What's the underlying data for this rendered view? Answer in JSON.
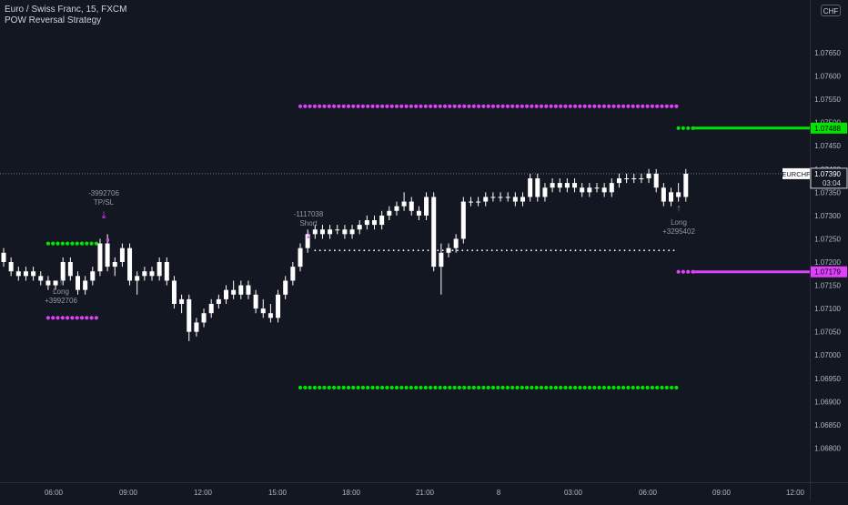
{
  "header": {
    "symbol_line": "Euro / Swiss Franc, 15, FXCM",
    "indicator_name": "POW Reversal Strategy",
    "currency_button": "CHF"
  },
  "last_price_label": {
    "symbol": "EURCHF",
    "price": "1.07390",
    "countdown": "03:04"
  },
  "price_tags": [
    {
      "label": "1.07488",
      "value": 1.07488,
      "color": "#00e500",
      "text_color": "#000000"
    },
    {
      "label": "1.07179",
      "value": 1.07179,
      "color": "#e040fb",
      "text_color": "#000000"
    }
  ],
  "trade_labels": [
    {
      "lines": [
        "Long",
        "+3992706"
      ],
      "arrow": "↑",
      "arrow_color": "#7b8ab8"
    },
    {
      "lines": [
        "-3992706",
        "TP/SL"
      ],
      "arrow": "⤓",
      "arrow_color": "#e040fb"
    },
    {
      "lines": [
        "-1117038",
        "Short"
      ],
      "arrow": "⤓",
      "arrow_color": "#e040fb"
    },
    {
      "lines": [
        "Long",
        "+3295402"
      ],
      "arrow": "↑",
      "arrow_color": "#7b8ab8"
    }
  ],
  "colors": {
    "background": "#131722",
    "candle_up": "#ffffff",
    "candle_down": "#ffffff",
    "green_dots": "#00e500",
    "magenta_dots": "#e040fb",
    "white_dots": "#ffffff",
    "axis_text": "#b2b5be"
  },
  "chart_data": {
    "type": "candlestick",
    "title": "Euro / Swiss Franc, 15, FXCM",
    "ylim": [
      1.0675,
      1.0774
    ],
    "y_ticks": [
      "1.07650",
      "1.07600",
      "1.07550",
      "1.07500",
      "1.07450",
      "1.07400",
      "1.07350",
      "1.07300",
      "1.07250",
      "1.07200",
      "1.07150",
      "1.07100",
      "1.07050",
      "1.07000",
      "1.06950",
      "1.06900",
      "1.06850",
      "1.06800"
    ],
    "x_ticks": [
      "06:00",
      "09:00",
      "12:00",
      "15:00",
      "18:00",
      "21:00",
      "8",
      "03:00",
      "06:00",
      "09:00",
      "12:00"
    ],
    "grid": false,
    "last_price": 1.0739,
    "candles": [
      {
        "o": 1.0722,
        "h": 1.0723,
        "l": 1.0719,
        "c": 1.072
      },
      {
        "o": 1.072,
        "h": 1.0721,
        "l": 1.0717,
        "c": 1.0718
      },
      {
        "o": 1.0718,
        "h": 1.0719,
        "l": 1.0716,
        "c": 1.0717
      },
      {
        "o": 1.0717,
        "h": 1.0719,
        "l": 1.0716,
        "c": 1.0718
      },
      {
        "o": 1.0718,
        "h": 1.0719,
        "l": 1.0716,
        "c": 1.0717
      },
      {
        "o": 1.0717,
        "h": 1.0718,
        "l": 1.0715,
        "c": 1.0716
      },
      {
        "o": 1.0716,
        "h": 1.0717,
        "l": 1.0714,
        "c": 1.0715
      },
      {
        "o": 1.0715,
        "h": 1.0716,
        "l": 1.0714,
        "c": 1.0716
      },
      {
        "o": 1.0716,
        "h": 1.0721,
        "l": 1.0715,
        "c": 1.072
      },
      {
        "o": 1.072,
        "h": 1.0721,
        "l": 1.0716,
        "c": 1.0717
      },
      {
        "o": 1.0717,
        "h": 1.0718,
        "l": 1.0713,
        "c": 1.0714
      },
      {
        "o": 1.0714,
        "h": 1.0717,
        "l": 1.0713,
        "c": 1.0716
      },
      {
        "o": 1.0716,
        "h": 1.0719,
        "l": 1.0715,
        "c": 1.0718
      },
      {
        "o": 1.0718,
        "h": 1.0725,
        "l": 1.0717,
        "c": 1.0724
      },
      {
        "o": 1.0724,
        "h": 1.0726,
        "l": 1.0718,
        "c": 1.0719
      },
      {
        "o": 1.0719,
        "h": 1.0721,
        "l": 1.0717,
        "c": 1.072
      },
      {
        "o": 1.072,
        "h": 1.0724,
        "l": 1.0719,
        "c": 1.0723
      },
      {
        "o": 1.0723,
        "h": 1.0724,
        "l": 1.0715,
        "c": 1.0716
      },
      {
        "o": 1.0716,
        "h": 1.0718,
        "l": 1.0713,
        "c": 1.0717
      },
      {
        "o": 1.0717,
        "h": 1.0719,
        "l": 1.0716,
        "c": 1.0718
      },
      {
        "o": 1.0718,
        "h": 1.0719,
        "l": 1.0716,
        "c": 1.0717
      },
      {
        "o": 1.0717,
        "h": 1.0721,
        "l": 1.0716,
        "c": 1.072
      },
      {
        "o": 1.072,
        "h": 1.0721,
        "l": 1.0715,
        "c": 1.0716
      },
      {
        "o": 1.0716,
        "h": 1.0717,
        "l": 1.071,
        "c": 1.0711
      },
      {
        "o": 1.0711,
        "h": 1.0713,
        "l": 1.0709,
        "c": 1.0712
      },
      {
        "o": 1.0712,
        "h": 1.0713,
        "l": 1.0703,
        "c": 1.0705
      },
      {
        "o": 1.0705,
        "h": 1.0708,
        "l": 1.0704,
        "c": 1.0707
      },
      {
        "o": 1.0707,
        "h": 1.071,
        "l": 1.0706,
        "c": 1.0709
      },
      {
        "o": 1.0709,
        "h": 1.0712,
        "l": 1.0708,
        "c": 1.0711
      },
      {
        "o": 1.0711,
        "h": 1.0713,
        "l": 1.071,
        "c": 1.0712
      },
      {
        "o": 1.0712,
        "h": 1.0715,
        "l": 1.0711,
        "c": 1.0714
      },
      {
        "o": 1.0714,
        "h": 1.0716,
        "l": 1.0712,
        "c": 1.0713
      },
      {
        "o": 1.0713,
        "h": 1.0716,
        "l": 1.0712,
        "c": 1.0715
      },
      {
        "o": 1.0715,
        "h": 1.0716,
        "l": 1.0712,
        "c": 1.0713
      },
      {
        "o": 1.0713,
        "h": 1.0714,
        "l": 1.0709,
        "c": 1.071
      },
      {
        "o": 1.071,
        "h": 1.0712,
        "l": 1.0708,
        "c": 1.0709
      },
      {
        "o": 1.0709,
        "h": 1.0711,
        "l": 1.0707,
        "c": 1.0708
      },
      {
        "o": 1.0708,
        "h": 1.0714,
        "l": 1.0707,
        "c": 1.0713
      },
      {
        "o": 1.0713,
        "h": 1.0717,
        "l": 1.0712,
        "c": 1.0716
      },
      {
        "o": 1.0716,
        "h": 1.072,
        "l": 1.0715,
        "c": 1.0719
      },
      {
        "o": 1.0719,
        "h": 1.0724,
        "l": 1.0718,
        "c": 1.0723
      },
      {
        "o": 1.0723,
        "h": 1.0727,
        "l": 1.0722,
        "c": 1.0726
      },
      {
        "o": 1.0726,
        "h": 1.0728,
        "l": 1.0725,
        "c": 1.0727
      },
      {
        "o": 1.0727,
        "h": 1.0728,
        "l": 1.0725,
        "c": 1.0726
      },
      {
        "o": 1.0726,
        "h": 1.0728,
        "l": 1.0725,
        "c": 1.0727
      },
      {
        "o": 1.0727,
        "h": 1.0728,
        "l": 1.0726,
        "c": 1.0727
      },
      {
        "o": 1.0727,
        "h": 1.0728,
        "l": 1.0725,
        "c": 1.0726
      },
      {
        "o": 1.0726,
        "h": 1.0728,
        "l": 1.0725,
        "c": 1.0727
      },
      {
        "o": 1.0727,
        "h": 1.0729,
        "l": 1.0726,
        "c": 1.0728
      },
      {
        "o": 1.0728,
        "h": 1.073,
        "l": 1.0727,
        "c": 1.0729
      },
      {
        "o": 1.0729,
        "h": 1.073,
        "l": 1.0727,
        "c": 1.0728
      },
      {
        "o": 1.0728,
        "h": 1.0731,
        "l": 1.0727,
        "c": 1.073
      },
      {
        "o": 1.073,
        "h": 1.0732,
        "l": 1.0729,
        "c": 1.0731
      },
      {
        "o": 1.0731,
        "h": 1.0733,
        "l": 1.073,
        "c": 1.0732
      },
      {
        "o": 1.0732,
        "h": 1.0735,
        "l": 1.0731,
        "c": 1.0733
      },
      {
        "o": 1.0733,
        "h": 1.0734,
        "l": 1.073,
        "c": 1.0731
      },
      {
        "o": 1.0731,
        "h": 1.0732,
        "l": 1.0729,
        "c": 1.073
      },
      {
        "o": 1.073,
        "h": 1.0735,
        "l": 1.0729,
        "c": 1.0734
      },
      {
        "o": 1.0734,
        "h": 1.0735,
        "l": 1.0718,
        "c": 1.0719
      },
      {
        "o": 1.0719,
        "h": 1.0724,
        "l": 1.0713,
        "c": 1.0722
      },
      {
        "o": 1.0722,
        "h": 1.0724,
        "l": 1.0721,
        "c": 1.0723
      },
      {
        "o": 1.0723,
        "h": 1.0726,
        "l": 1.0722,
        "c": 1.0725
      },
      {
        "o": 1.0725,
        "h": 1.0734,
        "l": 1.0724,
        "c": 1.0733
      },
      {
        "o": 1.0733,
        "h": 1.0734,
        "l": 1.0732,
        "c": 1.0733
      },
      {
        "o": 1.0733,
        "h": 1.0734,
        "l": 1.0732,
        "c": 1.0733
      },
      {
        "o": 1.0733,
        "h": 1.0735,
        "l": 1.0732,
        "c": 1.0734
      },
      {
        "o": 1.0734,
        "h": 1.0735,
        "l": 1.0733,
        "c": 1.0734
      },
      {
        "o": 1.0734,
        "h": 1.0735,
        "l": 1.0733,
        "c": 1.0734
      },
      {
        "o": 1.0734,
        "h": 1.0735,
        "l": 1.0733,
        "c": 1.0734
      },
      {
        "o": 1.0734,
        "h": 1.0735,
        "l": 1.0732,
        "c": 1.0733
      },
      {
        "o": 1.0733,
        "h": 1.0735,
        "l": 1.0732,
        "c": 1.0734
      },
      {
        "o": 1.0734,
        "h": 1.0739,
        "l": 1.0733,
        "c": 1.0738
      },
      {
        "o": 1.0738,
        "h": 1.0739,
        "l": 1.0733,
        "c": 1.0734
      },
      {
        "o": 1.0734,
        "h": 1.0737,
        "l": 1.0733,
        "c": 1.0736
      },
      {
        "o": 1.0736,
        "h": 1.0738,
        "l": 1.0735,
        "c": 1.0737
      },
      {
        "o": 1.0737,
        "h": 1.0738,
        "l": 1.0735,
        "c": 1.0736
      },
      {
        "o": 1.0736,
        "h": 1.0738,
        "l": 1.0735,
        "c": 1.0737
      },
      {
        "o": 1.0737,
        "h": 1.0738,
        "l": 1.0735,
        "c": 1.0736
      },
      {
        "o": 1.0736,
        "h": 1.0737,
        "l": 1.0734,
        "c": 1.0735
      },
      {
        "o": 1.0735,
        "h": 1.0737,
        "l": 1.0734,
        "c": 1.0736
      },
      {
        "o": 1.0736,
        "h": 1.0737,
        "l": 1.0735,
        "c": 1.0736
      },
      {
        "o": 1.0736,
        "h": 1.0737,
        "l": 1.0734,
        "c": 1.0735
      },
      {
        "o": 1.0735,
        "h": 1.0738,
        "l": 1.0734,
        "c": 1.0737
      },
      {
        "o": 1.0737,
        "h": 1.0739,
        "l": 1.0736,
        "c": 1.0738
      },
      {
        "o": 1.0738,
        "h": 1.0739,
        "l": 1.0737,
        "c": 1.0738
      },
      {
        "o": 1.0738,
        "h": 1.0739,
        "l": 1.0737,
        "c": 1.0738
      },
      {
        "o": 1.0738,
        "h": 1.0739,
        "l": 1.0737,
        "c": 1.0738
      },
      {
        "o": 1.0738,
        "h": 1.074,
        "l": 1.0737,
        "c": 1.0739
      },
      {
        "o": 1.0739,
        "h": 1.074,
        "l": 1.0735,
        "c": 1.0736
      },
      {
        "o": 1.0736,
        "h": 1.0737,
        "l": 1.0732,
        "c": 1.0733
      },
      {
        "o": 1.0733,
        "h": 1.0736,
        "l": 1.0732,
        "c": 1.0735
      },
      {
        "o": 1.0735,
        "h": 1.0737,
        "l": 1.0733,
        "c": 1.0734
      },
      {
        "o": 1.0734,
        "h": 1.074,
        "l": 1.0733,
        "c": 1.0739
      }
    ],
    "dot_lines": [
      {
        "color": "magenta",
        "price": 1.07535,
        "from": 40,
        "to": 91
      },
      {
        "color": "green",
        "price": 1.0693,
        "from": 40,
        "to": 91
      },
      {
        "color": "green",
        "price": 1.0724,
        "from": 6,
        "to": 13
      },
      {
        "color": "magenta",
        "price": 1.0708,
        "from": 6,
        "to": 13
      },
      {
        "color": "white",
        "price": 1.07225,
        "from": 42,
        "to": 91
      },
      {
        "color": "green",
        "price": 1.07488,
        "from": 91,
        "to": 93
      },
      {
        "color": "magenta",
        "price": 1.07179,
        "from": 91,
        "to": 93
      }
    ],
    "lines": [
      {
        "color": "green",
        "price": 1.07488
      },
      {
        "color": "magenta",
        "price": 1.07179
      }
    ]
  }
}
